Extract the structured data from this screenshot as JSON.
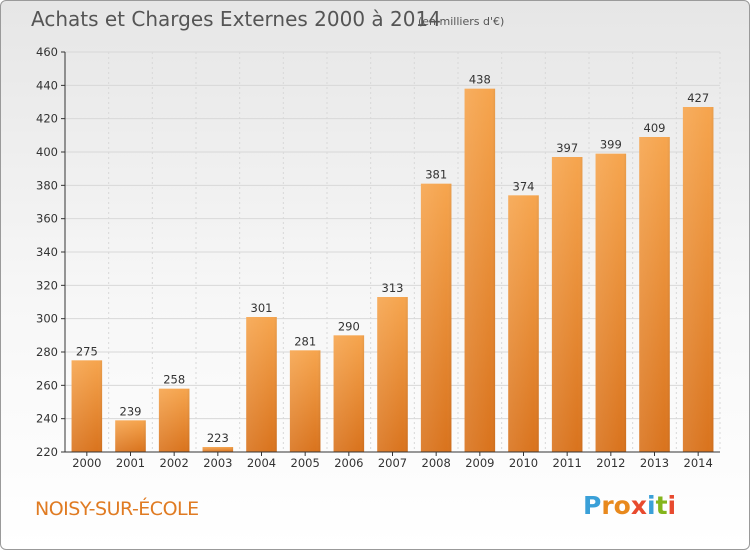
{
  "header": {
    "title": "Achats et Charges Externes 2000 à 2014",
    "unit": "(en milliers d'€)"
  },
  "footer": {
    "commune": "NOISY-SUR-ÉCOLE",
    "logo": [
      "P",
      "r",
      "o",
      "x",
      "i",
      "t",
      "i"
    ]
  },
  "colors": {
    "bar_light": "#f6a54e",
    "bar_dark": "#d9731d",
    "axis": "#333333",
    "grid": "#d8d8d8",
    "logo": [
      "#3aa0d8",
      "#e8891d",
      "#e8891d",
      "#e84a2e",
      "#3aa0d8",
      "#84b51c",
      "#e84a2e"
    ]
  },
  "chart_data": {
    "type": "bar",
    "title": "Achats et Charges Externes 2000 à 2014",
    "categories": [
      "2000",
      "2001",
      "2002",
      "2003",
      "2004",
      "2005",
      "2006",
      "2007",
      "2008",
      "2009",
      "2010",
      "2011",
      "2012",
      "2013",
      "2014"
    ],
    "values": [
      275,
      239,
      258,
      223,
      301,
      281,
      290,
      313,
      381,
      438,
      374,
      397,
      399,
      409,
      427
    ],
    "ylim": [
      220,
      460
    ],
    "yticks": [
      220,
      240,
      260,
      280,
      300,
      320,
      340,
      360,
      380,
      400,
      420,
      440,
      460
    ],
    "grid": "horizontal",
    "legend": "none"
  }
}
